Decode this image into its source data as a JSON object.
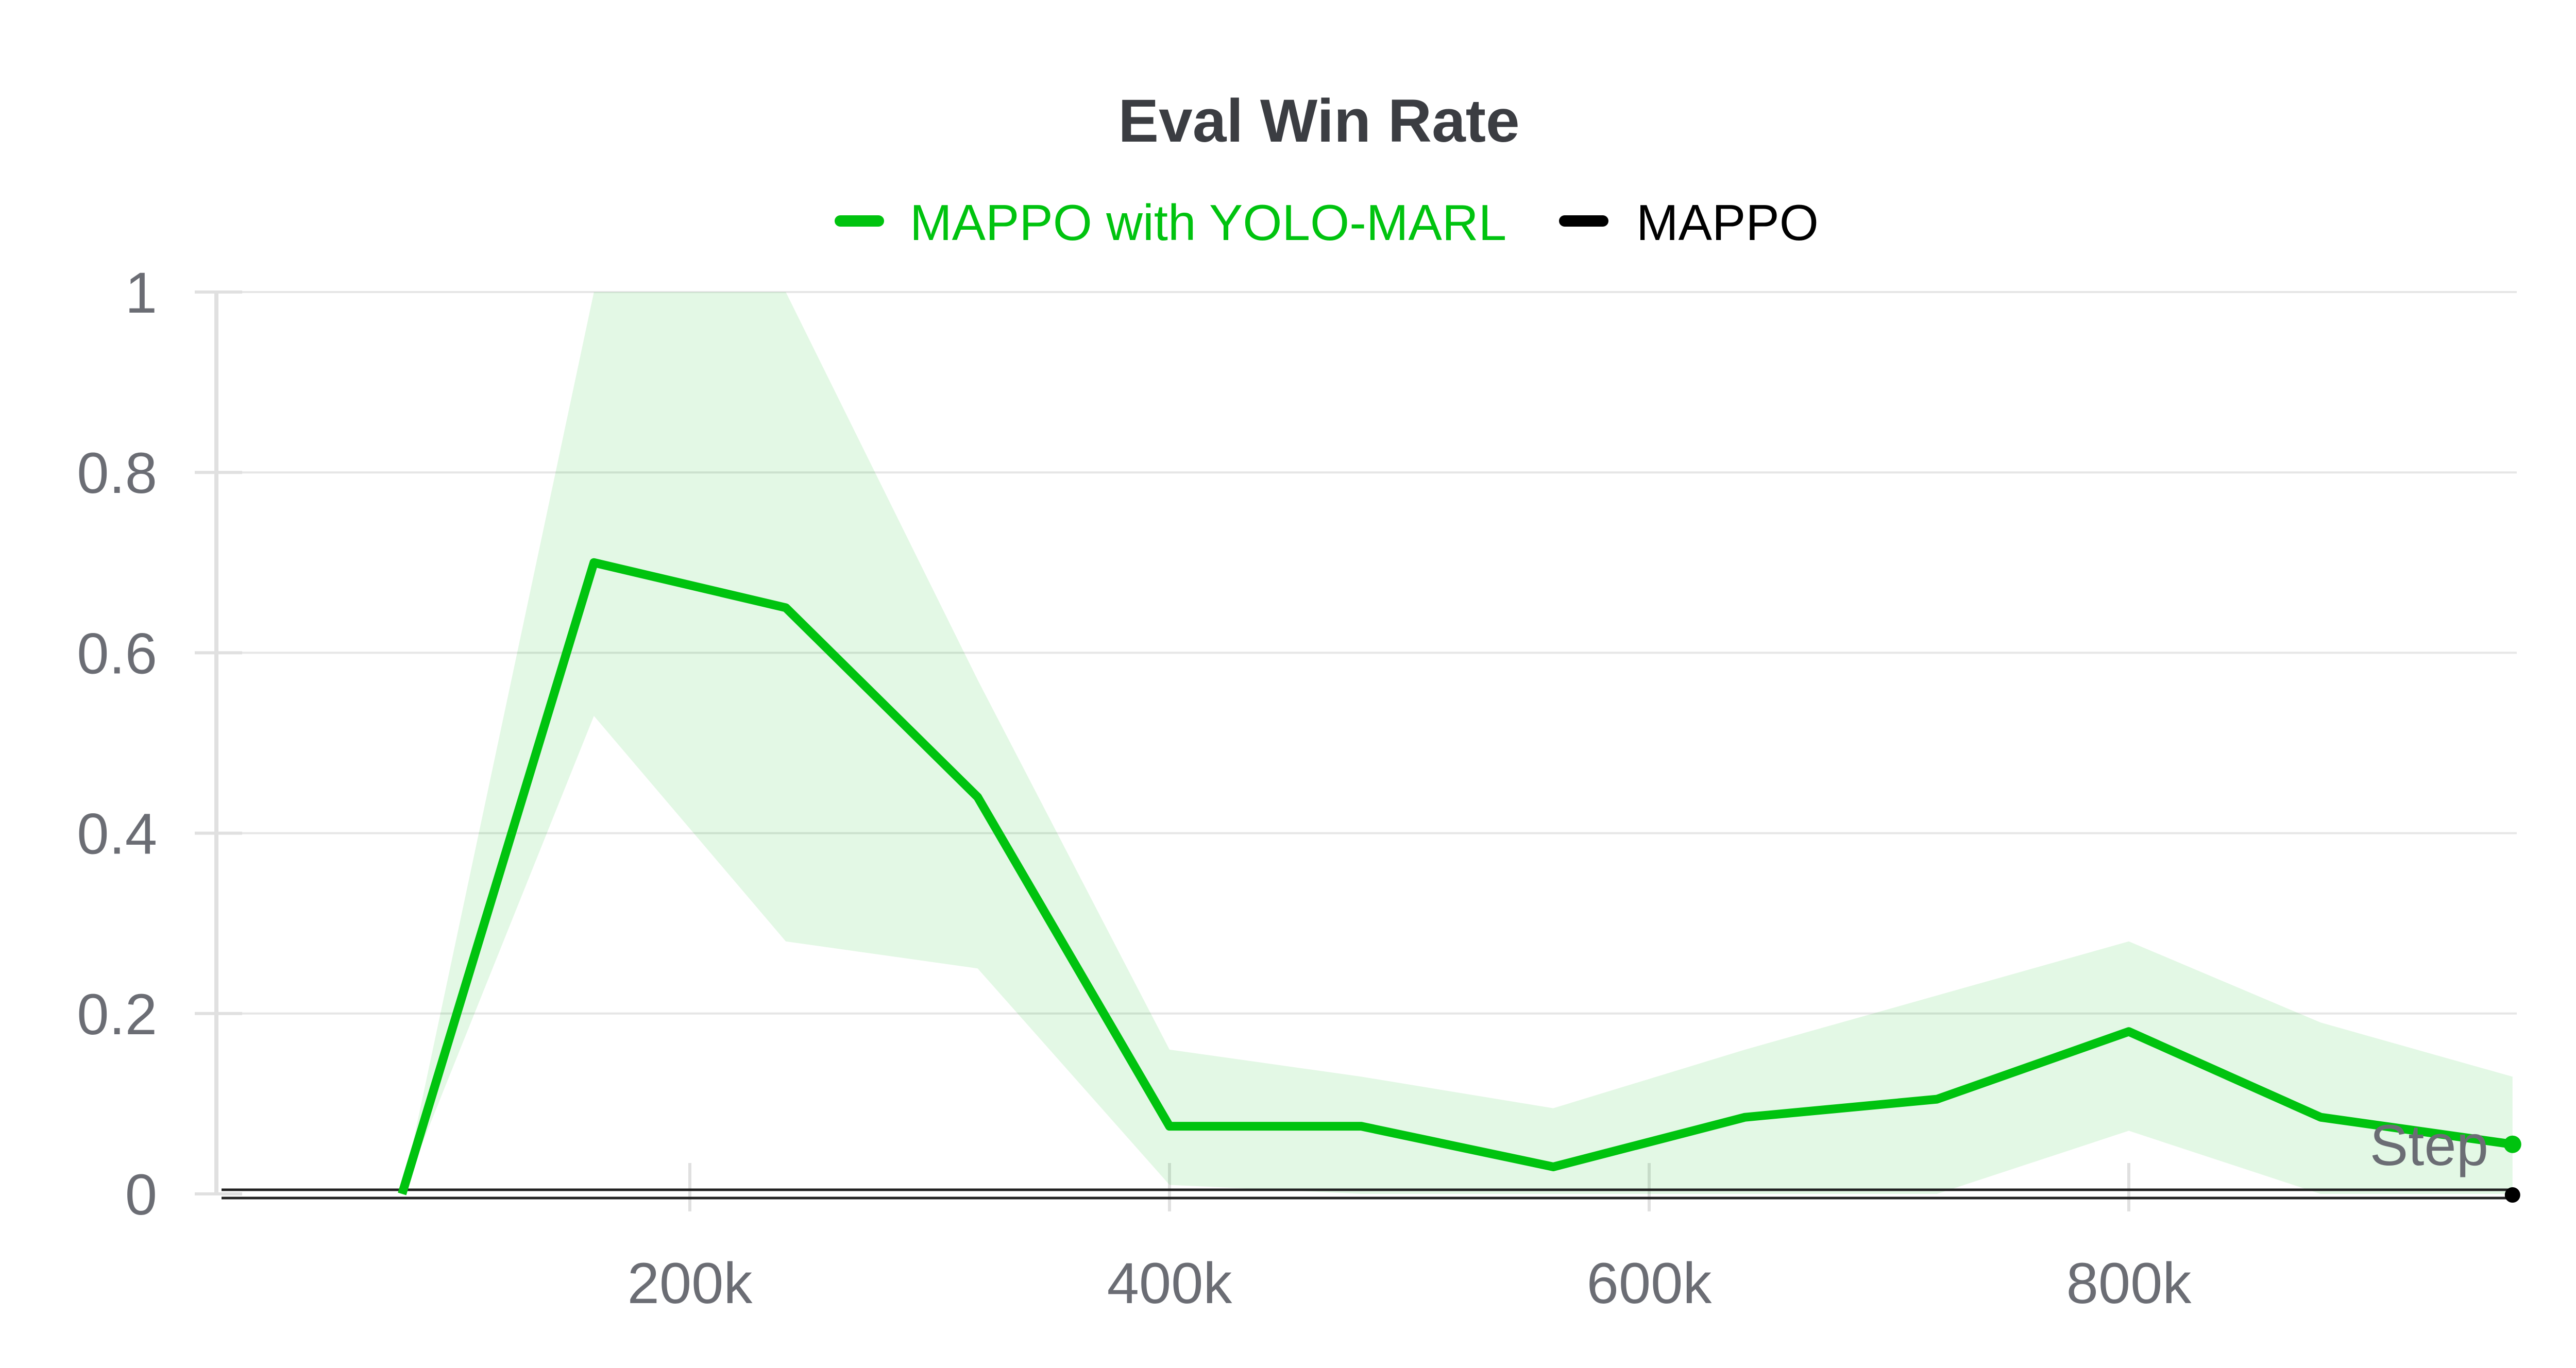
{
  "colors": {
    "series_green": "#00c30f",
    "band_green": "#00c30f",
    "series_black": "#000000",
    "grid": "#e6e6e6",
    "axis": "#e0e0e0",
    "text": "#6b6d74",
    "title": "#3b3d42"
  },
  "chart_data": {
    "type": "line",
    "title": "Eval Win Rate",
    "xlabel": "Step",
    "ylabel": "",
    "xlim": [
      0,
      960000
    ],
    "ylim": [
      0,
      1
    ],
    "x_ticks": [
      200000,
      400000,
      600000,
      800000
    ],
    "x_tick_labels": [
      "200k",
      "400k",
      "600k",
      "800k"
    ],
    "y_ticks": [
      0,
      0.2,
      0.4,
      0.6,
      0.8,
      1
    ],
    "y_tick_labels": [
      "0",
      "0.2",
      "0.4",
      "0.6",
      "0.8",
      "1"
    ],
    "grid": true,
    "legend_position": "top-center",
    "series": [
      {
        "name": "MAPPO with YOLO-MARL",
        "color": "#00c30f",
        "x": [
          80000,
          160000,
          240000,
          320000,
          400000,
          480000,
          560000,
          640000,
          720000,
          800000,
          880000,
          960000
        ],
        "y": [
          0,
          0.7,
          0.65,
          0.44,
          0.075,
          0.075,
          0.03,
          0.085,
          0.105,
          0.18,
          0.085,
          0.055
        ],
        "band_upper": [
          0,
          1.0,
          1.0,
          0.57,
          0.16,
          0.13,
          0.095,
          0.16,
          0.22,
          0.28,
          0.19,
          0.13
        ],
        "band_lower": [
          0,
          0.53,
          0.28,
          0.25,
          0.01,
          0.0,
          0.0,
          0.0,
          0.0,
          0.07,
          0.0,
          0.0
        ]
      },
      {
        "name": "MAPPO",
        "color": "#000000",
        "x": [
          0,
          960000
        ],
        "y": [
          0,
          0
        ]
      }
    ]
  }
}
